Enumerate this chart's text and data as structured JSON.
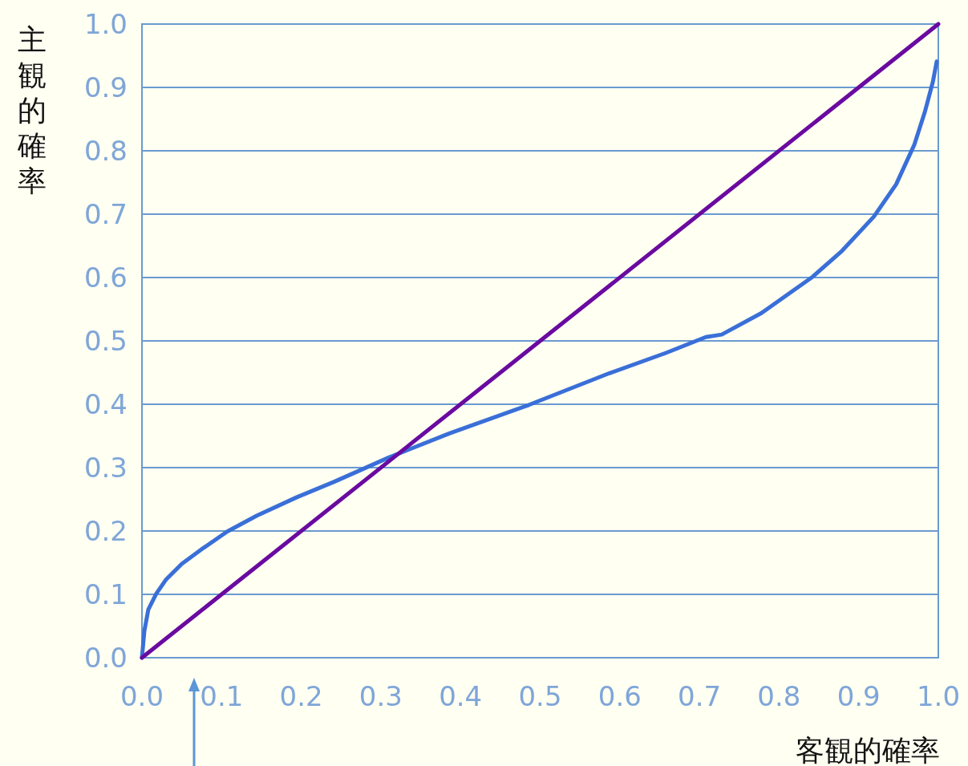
{
  "chart_data": {
    "type": "line",
    "xlabel": "客観的確率",
    "ylabel": "主観的確率",
    "xlim": [
      0,
      1
    ],
    "ylim": [
      0,
      1
    ],
    "xticks": [
      {
        "value": 0,
        "label": "0.0"
      },
      0.1,
      0.2,
      0.3,
      0.4,
      0.5,
      0.6,
      0.7,
      0.8,
      0.9,
      {
        "value": 1,
        "label": "1.0"
      }
    ],
    "yticks": [
      {
        "value": 0,
        "label": "0.0"
      },
      0.1,
      0.2,
      0.3,
      0.4,
      0.5,
      0.6,
      0.7,
      0.8,
      0.9,
      {
        "value": 1,
        "label": "1.0"
      }
    ],
    "grid": "y",
    "series": [
      {
        "color": "#3a6fd8",
        "x": [
          0,
          0.003,
          0.008,
          0.018,
          0.03,
          0.05,
          0.077,
          0.107,
          0.144,
          0.194,
          0.242,
          0.31,
          0.386,
          0.486,
          0.587,
          0.658,
          0.708,
          0.728,
          0.778,
          0.842,
          0.879,
          0.919,
          0.947,
          0.97,
          0.983,
          0.993,
          0.998
        ],
        "values": [
          0,
          0.042,
          0.076,
          0.101,
          0.123,
          0.148,
          0.173,
          0.199,
          0.224,
          0.253,
          0.278,
          0.316,
          0.354,
          0.399,
          0.449,
          0.481,
          0.506,
          0.51,
          0.544,
          0.601,
          0.642,
          0.696,
          0.747,
          0.81,
          0.861,
          0.908,
          0.941
        ]
      },
      {
        "color": "#6a0aa0",
        "x": [
          0,
          1
        ],
        "values": [
          0,
          1
        ]
      }
    ]
  }
}
